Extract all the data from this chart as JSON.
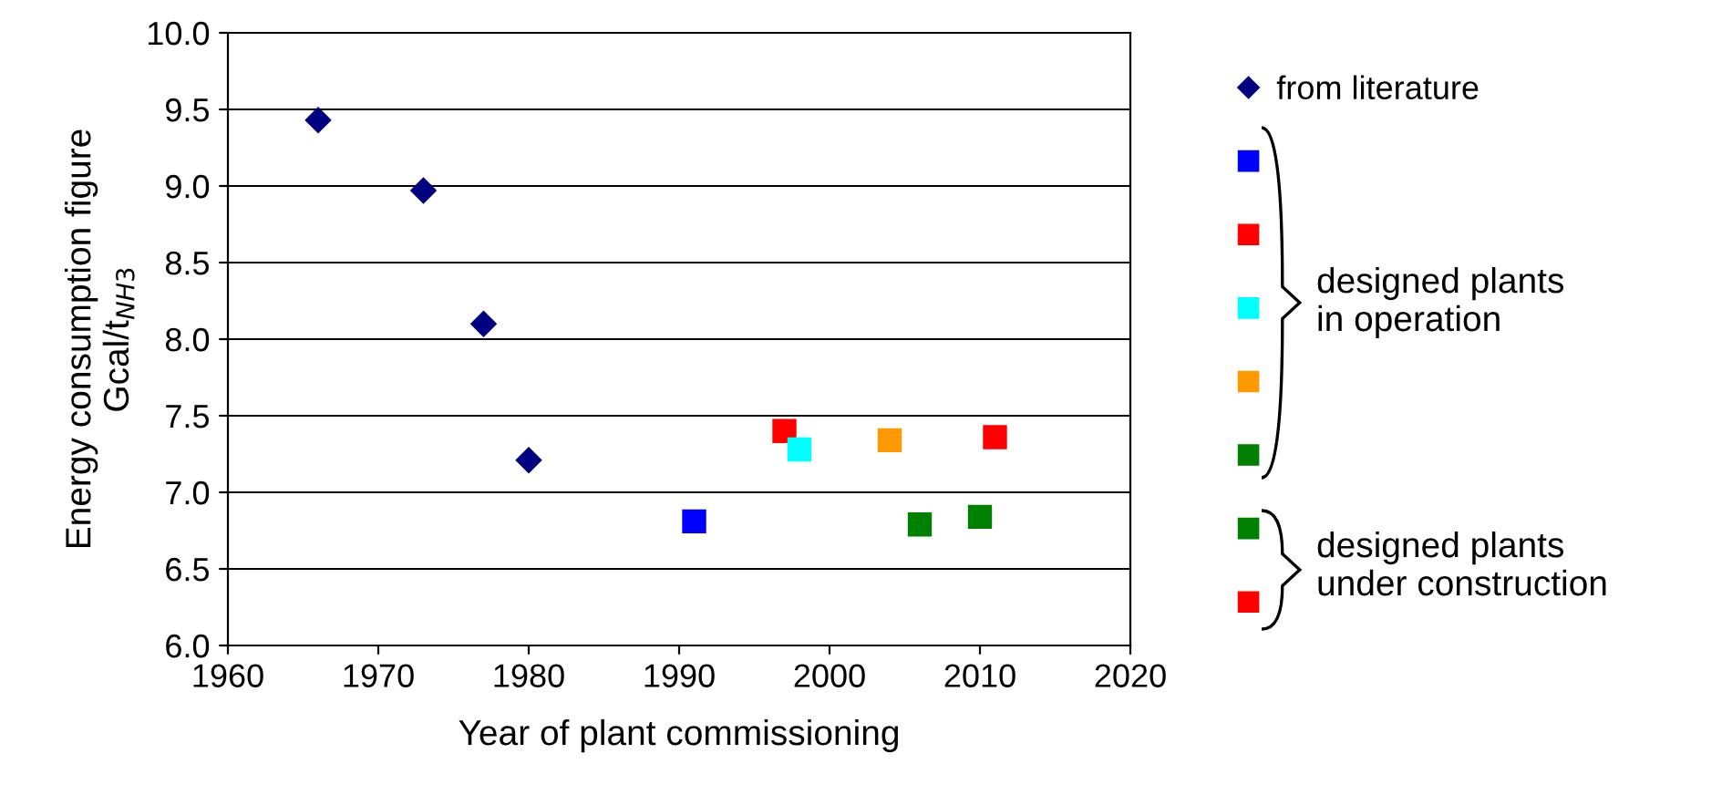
{
  "chart_data": {
    "type": "scatter",
    "xlabel": "Year of plant commissioning",
    "ylabel": "Energy consumption figure\nGcal/t$_{NH3}$",
    "xlim": [
      1960,
      2020
    ],
    "xticks": [
      1960,
      1970,
      1980,
      1990,
      2000,
      2010,
      2020
    ],
    "ylim": [
      6.0,
      10.0
    ],
    "yticks": [
      {
        "value": 6.0,
        "label": "6.0"
      },
      {
        "value": 6.5,
        "label": "6.5"
      },
      {
        "value": 7.0,
        "label": "7.0"
      },
      {
        "value": 7.5,
        "label": "7.5"
      },
      {
        "value": 8.0,
        "label": "8.0"
      },
      {
        "value": 8.5,
        "label": "8.5"
      },
      {
        "value": 9.0,
        "label": "9.0"
      },
      {
        "value": 9.5,
        "label": "9.5"
      },
      {
        "value": 10.0,
        "label": "10.0"
      }
    ],
    "grid": "y",
    "legend": "right",
    "marker": "square",
    "series": [
      {
        "name": "from literature",
        "color": "#000080",
        "marker": "diamond",
        "x": [
          1966,
          1973,
          1977,
          1980
        ],
        "values": [
          9.43,
          8.97,
          8.1,
          7.21
        ]
      },
      {
        "color": "#0000ff",
        "x": [
          1991
        ],
        "values": [
          6.81
        ]
      },
      {
        "color": "#ff0000",
        "x": [
          1997
        ],
        "values": [
          7.4
        ]
      },
      {
        "color": "#00ffff",
        "x": [
          1998
        ],
        "values": [
          7.28
        ]
      },
      {
        "color": "#ff9900",
        "x": [
          2004
        ],
        "values": [
          7.34
        ]
      },
      {
        "color": "#008000",
        "x": [
          2006
        ],
        "values": [
          6.79
        ]
      },
      {
        "color": "#008000",
        "x": [
          2010
        ],
        "values": [
          6.84
        ]
      },
      {
        "color": "#ff0000",
        "x": [
          2011
        ],
        "values": [
          7.36
        ]
      }
    ],
    "annotations": [
      "designed plants\nin operation",
      "designed plants\nunder construction"
    ]
  }
}
